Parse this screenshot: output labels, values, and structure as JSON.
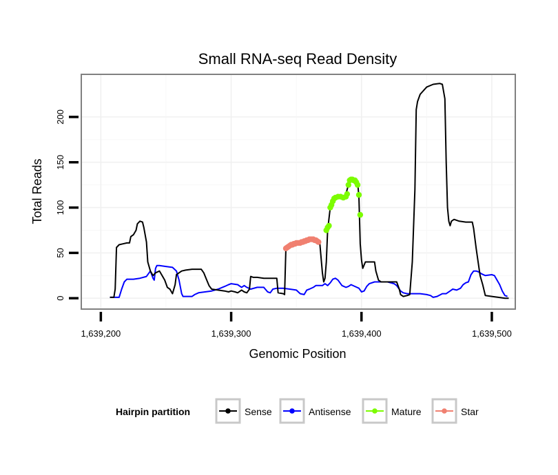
{
  "chart_data": {
    "type": "line",
    "title": "Small RNA-seq Read Density",
    "xlabel": "Genomic Position",
    "ylabel": "Total Reads",
    "xlim": [
      1639185,
      1639518
    ],
    "ylim": [
      -12,
      247
    ],
    "xticks": [
      1639200,
      1639300,
      1639400,
      1639500
    ],
    "xtick_labels": [
      "1,639,200",
      "1,639,300",
      "1,639,400",
      "1,639,500"
    ],
    "yticks": [
      0,
      50,
      100,
      150,
      200
    ],
    "ytick_labels": [
      "0",
      "50",
      "100",
      "150",
      "200"
    ],
    "grid": true,
    "legend": {
      "title": "Hairpin partition",
      "position": "bottom",
      "entries": [
        "Sense",
        "Antisense",
        "Mature",
        "Star"
      ]
    },
    "colors": {
      "Sense": "#000000",
      "Antisense": "#0000ff",
      "Mature": "#7cfc00",
      "Star": "#f08070"
    },
    "series": [
      {
        "name": "Sense",
        "style": "line",
        "points": [
          [
            1639207,
            1
          ],
          [
            1639210,
            1
          ],
          [
            1639211,
            10
          ],
          [
            1639212,
            56
          ],
          [
            1639214,
            59
          ],
          [
            1639217,
            60
          ],
          [
            1639220,
            61
          ],
          [
            1639222,
            61
          ],
          [
            1639223,
            68
          ],
          [
            1639225,
            70
          ],
          [
            1639227,
            75
          ],
          [
            1639228,
            82
          ],
          [
            1639230,
            85
          ],
          [
            1639232,
            84
          ],
          [
            1639233,
            78
          ],
          [
            1639235,
            62
          ],
          [
            1639236,
            40
          ],
          [
            1639238,
            30
          ],
          [
            1639240,
            25
          ],
          [
            1639242,
            28
          ],
          [
            1639245,
            30
          ],
          [
            1639247,
            25
          ],
          [
            1639249,
            20
          ],
          [
            1639251,
            12
          ],
          [
            1639253,
            10
          ],
          [
            1639255,
            5
          ],
          [
            1639257,
            15
          ],
          [
            1639258,
            26
          ],
          [
            1639260,
            28
          ],
          [
            1639262,
            30
          ],
          [
            1639265,
            31
          ],
          [
            1639270,
            32
          ],
          [
            1639275,
            32
          ],
          [
            1639277,
            32
          ],
          [
            1639279,
            28
          ],
          [
            1639281,
            21
          ],
          [
            1639283,
            14
          ],
          [
            1639285,
            10
          ],
          [
            1639290,
            9
          ],
          [
            1639295,
            8
          ],
          [
            1639298,
            7
          ],
          [
            1639300,
            8
          ],
          [
            1639303,
            7
          ],
          [
            1639305,
            6
          ],
          [
            1639308,
            9
          ],
          [
            1639310,
            7
          ],
          [
            1639312,
            6
          ],
          [
            1639314,
            10
          ],
          [
            1639315,
            24
          ],
          [
            1639317,
            23
          ],
          [
            1639320,
            23
          ],
          [
            1639325,
            22
          ],
          [
            1639330,
            22
          ],
          [
            1639332,
            22
          ],
          [
            1639335,
            22
          ],
          [
            1639336,
            6
          ],
          [
            1639340,
            5
          ],
          [
            1639341,
            4
          ],
          [
            1639342,
            55
          ],
          [
            1639345,
            57
          ],
          [
            1639350,
            60
          ],
          [
            1639355,
            62
          ],
          [
            1639360,
            63
          ],
          [
            1639365,
            63
          ],
          [
            1639368,
            61
          ],
          [
            1639370,
            28
          ],
          [
            1639371,
            18
          ],
          [
            1639372,
            22
          ],
          [
            1639373,
            40
          ],
          [
            1639374,
            75
          ],
          [
            1639376,
            100
          ],
          [
            1639378,
            108
          ],
          [
            1639380,
            111
          ],
          [
            1639383,
            111
          ],
          [
            1639386,
            112
          ],
          [
            1639388,
            115
          ],
          [
            1639390,
            125
          ],
          [
            1639392,
            130
          ],
          [
            1639395,
            130
          ],
          [
            1639397,
            128
          ],
          [
            1639398,
            112
          ],
          [
            1639399,
            60
          ],
          [
            1639400,
            42
          ],
          [
            1639401,
            33
          ],
          [
            1639403,
            40
          ],
          [
            1639405,
            40
          ],
          [
            1639410,
            40
          ],
          [
            1639411,
            30
          ],
          [
            1639413,
            20
          ],
          [
            1639415,
            18
          ],
          [
            1639420,
            18
          ],
          [
            1639425,
            18
          ],
          [
            1639427,
            18
          ],
          [
            1639429,
            10
          ],
          [
            1639430,
            4
          ],
          [
            1639432,
            2
          ],
          [
            1639435,
            3
          ],
          [
            1639437,
            4
          ],
          [
            1639439,
            40
          ],
          [
            1639441,
            120
          ],
          [
            1639442,
            208
          ],
          [
            1639443,
            217
          ],
          [
            1639445,
            225
          ],
          [
            1639450,
            233
          ],
          [
            1639455,
            236
          ],
          [
            1639460,
            237
          ],
          [
            1639462,
            236
          ],
          [
            1639464,
            220
          ],
          [
            1639465,
            150
          ],
          [
            1639466,
            100
          ],
          [
            1639467,
            85
          ],
          [
            1639468,
            80
          ],
          [
            1639469,
            85
          ],
          [
            1639471,
            87
          ],
          [
            1639475,
            85
          ],
          [
            1639480,
            84
          ],
          [
            1639485,
            84
          ],
          [
            1639486,
            77
          ],
          [
            1639488,
            55
          ],
          [
            1639489,
            45
          ],
          [
            1639491,
            25
          ],
          [
            1639493,
            15
          ],
          [
            1639495,
            3
          ],
          [
            1639500,
            2
          ],
          [
            1639505,
            1
          ],
          [
            1639510,
            0
          ],
          [
            1639513,
            0
          ]
        ]
      },
      {
        "name": "Antisense",
        "style": "line",
        "points": [
          [
            1639207,
            1
          ],
          [
            1639214,
            1
          ],
          [
            1639216,
            10
          ],
          [
            1639218,
            18
          ],
          [
            1639220,
            21
          ],
          [
            1639225,
            21
          ],
          [
            1639230,
            22
          ],
          [
            1639235,
            24
          ],
          [
            1639238,
            30
          ],
          [
            1639240,
            22
          ],
          [
            1639241,
            20
          ],
          [
            1639242,
            33
          ],
          [
            1639243,
            36
          ],
          [
            1639245,
            36
          ],
          [
            1639250,
            35
          ],
          [
            1639255,
            34
          ],
          [
            1639258,
            30
          ],
          [
            1639260,
            20
          ],
          [
            1639262,
            5
          ],
          [
            1639263,
            2
          ],
          [
            1639265,
            2
          ],
          [
            1639270,
            2
          ],
          [
            1639272,
            4
          ],
          [
            1639275,
            6
          ],
          [
            1639280,
            7
          ],
          [
            1639285,
            8
          ],
          [
            1639290,
            10
          ],
          [
            1639295,
            13
          ],
          [
            1639298,
            15
          ],
          [
            1639300,
            16
          ],
          [
            1639305,
            15
          ],
          [
            1639308,
            12
          ],
          [
            1639310,
            14
          ],
          [
            1639312,
            12
          ],
          [
            1639315,
            10
          ],
          [
            1639320,
            12
          ],
          [
            1639325,
            12
          ],
          [
            1639328,
            7
          ],
          [
            1639330,
            6
          ],
          [
            1639332,
            10
          ],
          [
            1639335,
            11
          ],
          [
            1639340,
            11
          ],
          [
            1639345,
            10
          ],
          [
            1639350,
            9
          ],
          [
            1639353,
            5
          ],
          [
            1639356,
            4
          ],
          [
            1639358,
            9
          ],
          [
            1639360,
            10
          ],
          [
            1639363,
            12
          ],
          [
            1639365,
            14
          ],
          [
            1639370,
            14
          ],
          [
            1639372,
            16
          ],
          [
            1639374,
            14
          ],
          [
            1639376,
            17
          ],
          [
            1639378,
            21
          ],
          [
            1639380,
            22
          ],
          [
            1639382,
            20
          ],
          [
            1639385,
            14
          ],
          [
            1639388,
            12
          ],
          [
            1639390,
            13
          ],
          [
            1639392,
            15
          ],
          [
            1639395,
            13
          ],
          [
            1639398,
            11
          ],
          [
            1639400,
            7
          ],
          [
            1639402,
            8
          ],
          [
            1639404,
            13
          ],
          [
            1639406,
            16
          ],
          [
            1639410,
            18
          ],
          [
            1639415,
            18
          ],
          [
            1639420,
            18
          ],
          [
            1639425,
            16
          ],
          [
            1639427,
            14
          ],
          [
            1639430,
            8
          ],
          [
            1639432,
            6
          ],
          [
            1639435,
            5
          ],
          [
            1639440,
            5
          ],
          [
            1639445,
            5
          ],
          [
            1639450,
            4
          ],
          [
            1639453,
            3
          ],
          [
            1639455,
            1
          ],
          [
            1639458,
            2
          ],
          [
            1639462,
            5
          ],
          [
            1639465,
            5
          ],
          [
            1639468,
            8
          ],
          [
            1639470,
            10
          ],
          [
            1639473,
            9
          ],
          [
            1639476,
            11
          ],
          [
            1639478,
            15
          ],
          [
            1639480,
            17
          ],
          [
            1639482,
            18
          ],
          [
            1639484,
            26
          ],
          [
            1639486,
            30
          ],
          [
            1639488,
            30
          ],
          [
            1639490,
            29
          ],
          [
            1639492,
            27
          ],
          [
            1639495,
            25
          ],
          [
            1639500,
            26
          ],
          [
            1639502,
            25
          ],
          [
            1639504,
            20
          ],
          [
            1639506,
            15
          ],
          [
            1639508,
            8
          ],
          [
            1639510,
            3
          ],
          [
            1639512,
            2
          ]
        ]
      },
      {
        "name": "Mature",
        "style": "points",
        "points": [
          [
            1639373,
            75
          ],
          [
            1639374,
            78
          ],
          [
            1639375,
            80
          ],
          [
            1639376,
            100
          ],
          [
            1639377,
            103
          ],
          [
            1639378,
            107
          ],
          [
            1639379,
            110
          ],
          [
            1639380,
            111
          ],
          [
            1639382,
            112
          ],
          [
            1639384,
            112
          ],
          [
            1639386,
            111
          ],
          [
            1639388,
            112
          ],
          [
            1639389,
            115
          ],
          [
            1639390,
            125
          ],
          [
            1639391,
            130
          ],
          [
            1639392,
            131
          ],
          [
            1639393,
            131
          ],
          [
            1639394,
            130
          ],
          [
            1639395,
            130
          ],
          [
            1639396,
            128
          ],
          [
            1639397,
            125
          ],
          [
            1639398,
            114
          ],
          [
            1639399,
            92
          ]
        ]
      },
      {
        "name": "Star",
        "style": "points",
        "points": [
          [
            1639342,
            55
          ],
          [
            1639343,
            56
          ],
          [
            1639344,
            57
          ],
          [
            1639345,
            58
          ],
          [
            1639346,
            59
          ],
          [
            1639347,
            59
          ],
          [
            1639348,
            60
          ],
          [
            1639349,
            60
          ],
          [
            1639350,
            61
          ],
          [
            1639351,
            61
          ],
          [
            1639352,
            61
          ],
          [
            1639353,
            61
          ],
          [
            1639354,
            62
          ],
          [
            1639355,
            62
          ],
          [
            1639356,
            63
          ],
          [
            1639357,
            63
          ],
          [
            1639358,
            64
          ],
          [
            1639359,
            64
          ],
          [
            1639360,
            65
          ],
          [
            1639361,
            65
          ],
          [
            1639362,
            65
          ],
          [
            1639363,
            65
          ],
          [
            1639364,
            64
          ],
          [
            1639365,
            64
          ],
          [
            1639366,
            63
          ],
          [
            1639367,
            62
          ]
        ]
      }
    ]
  }
}
